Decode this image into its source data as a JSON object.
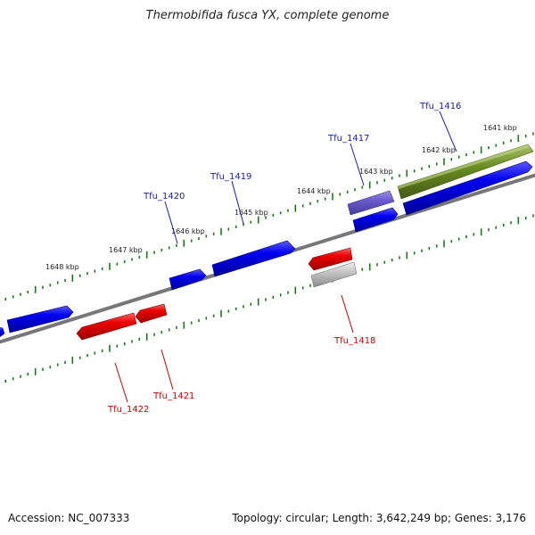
{
  "header": {
    "title": "Thermobifida fusca YX, complete genome"
  },
  "footer": {
    "accession": "Accession: NC_007333",
    "summary": "Topology: circular; Length: 3,642,249 bp; Genes: 3,176"
  },
  "kbp_ticks": [
    "1641 kbp",
    "1642 kbp",
    "1643 kbp",
    "1644 kbp",
    "1645 kbp",
    "1646 kbp",
    "1647 kbp",
    "1648 kbp"
  ],
  "genes": [
    {
      "name": "Tfu_1416",
      "strand": "forward",
      "color": "#0000cc"
    },
    {
      "name": "Tfu_1417",
      "strand": "forward",
      "color": "#0000cc"
    },
    {
      "name": "Tfu_1418",
      "strand": "reverse",
      "color": "#cc0000"
    },
    {
      "name": "Tfu_1419",
      "strand": "forward",
      "color": "#0000cc"
    },
    {
      "name": "Tfu_1420",
      "strand": "forward",
      "color": "#0000cc"
    },
    {
      "name": "Tfu_1421",
      "strand": "reverse",
      "color": "#cc0000"
    },
    {
      "name": "Tfu_1422",
      "strand": "reverse",
      "color": "#cc0000"
    }
  ],
  "colors": {
    "forward_cds": "#0000ee",
    "reverse_cds": "#ee0000",
    "forward_label": "#1a1aa8",
    "reverse_label": "#cc0000",
    "feature_olive": "#6b8e23",
    "feature_purple": "#6a5acd",
    "feature_gray": "#bdbdbd",
    "backbone": "#777777",
    "tick": "#1a7a1a"
  }
}
